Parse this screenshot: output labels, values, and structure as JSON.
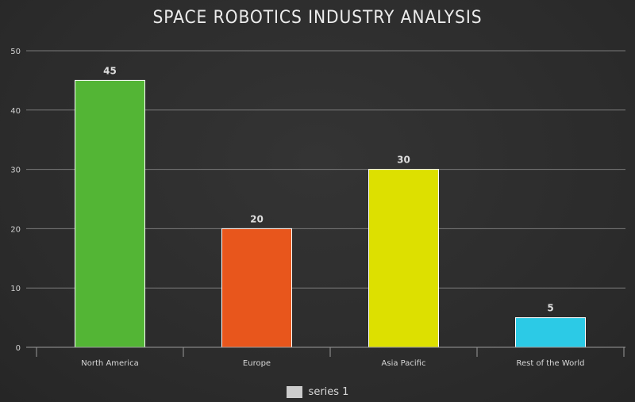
{
  "chart_data": {
    "type": "bar",
    "title": "SPACE ROBOTICS INDUSTRY ANALYSIS",
    "xlabel": "",
    "ylabel": "",
    "categories": [
      "North America",
      "Europe",
      "Asia Pacific",
      "Rest of the World"
    ],
    "series": [
      {
        "name": "series 1",
        "values": [
          45,
          20,
          30,
          5
        ],
        "colors": [
          "#53b535",
          "#e8561c",
          "#dde000",
          "#2ccae6"
        ]
      }
    ],
    "ylim": [
      0,
      50
    ],
    "yticks": [
      0,
      10,
      20,
      30,
      40,
      50
    ],
    "grid": true,
    "data_labels": true,
    "legend_position": "bottom"
  }
}
